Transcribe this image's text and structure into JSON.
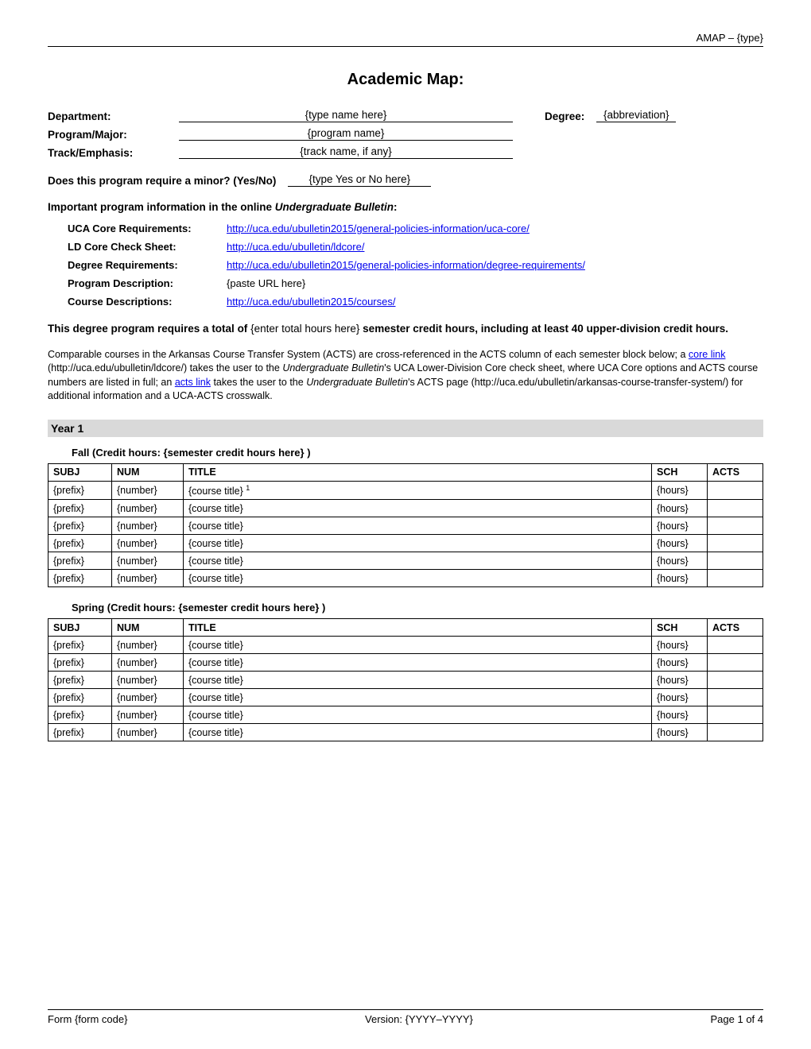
{
  "header": {
    "right": "AMAP – {type}"
  },
  "title": "Academic Map:",
  "info": {
    "department_label": "Department:",
    "department_value": "{type name here}",
    "degree_label": "Degree:",
    "degree_value": "{abbreviation}",
    "program_label": "Program/Major:",
    "program_value": "{program name}",
    "track_label": "Track/Emphasis:",
    "track_value": "{track name, if any}",
    "minor_label": "Does this program require a minor? (Yes/No)",
    "minor_value": "{type Yes or No here}"
  },
  "bulletin_heading_1": "Important program information in the online ",
  "bulletin_heading_2": "Undergraduate Bulletin",
  "bulletin_heading_3": ":",
  "links": {
    "uca_core_label": "UCA Core Requirements:",
    "uca_core_url": "http://uca.edu/ubulletin2015/general-policies-information/uca-core/",
    "ld_core_label": "LD Core Check Sheet:",
    "ld_core_url": "http://uca.edu/ubulletin/ldcore/",
    "degree_req_label": "Degree Requirements:",
    "degree_req_url": "http://uca.edu/ubulletin2015/general-policies-information/degree-requirements/",
    "program_desc_label": "Program Description:",
    "program_desc_value": "{paste URL here}",
    "course_desc_label": "Course Descriptions:",
    "course_desc_url": "http://uca.edu/ubulletin2015/courses/"
  },
  "degree_req_text": {
    "part1": "This degree program requires a total of ",
    "placeholder": "{enter total hours here}",
    "part2": "   semester credit hours, including at least 40 upper-division credit hours."
  },
  "paragraph": {
    "p1": "Comparable courses in the Arkansas Course Transfer System (ACTS) are cross-referenced in the ACTS column of each semester block below; a ",
    "core_link": "core link",
    "p2": " (http://uca.edu/ubulletin/ldcore/) takes the user to the ",
    "ub1": "Undergraduate Bulletin",
    "p3": "'s UCA Lower-Division Core check sheet, where UCA Core options and ACTS course numbers are listed in full; an ",
    "acts_link": "acts link",
    "p4": " takes the user to the ",
    "ub2": "Undergraduate Bulletin",
    "p5": "'s ACTS page (http://uca.edu/ubulletin/arkansas-course-transfer-system/) for additional information and a UCA-ACTS crosswalk."
  },
  "year": "Year 1",
  "fall_heading": "Fall (Credit hours: {semester credit hours here} )",
  "spring_heading": "Spring (Credit hours: {semester credit hours here} )",
  "table_headers": {
    "subj": "SUBJ",
    "num": "NUM",
    "title": "TITLE",
    "sch": "SCH",
    "acts": "ACTS"
  },
  "fall_rows": [
    {
      "subj": "{prefix}",
      "num": "{number}",
      "title": "{course title} ",
      "sup": "1",
      "sch": "{hours}",
      "acts": ""
    },
    {
      "subj": "{prefix}",
      "num": "{number}",
      "title": "{course title}",
      "sup": "",
      "sch": "{hours}",
      "acts": ""
    },
    {
      "subj": "{prefix}",
      "num": "{number}",
      "title": "{course title}",
      "sup": "",
      "sch": "{hours}",
      "acts": ""
    },
    {
      "subj": "{prefix}",
      "num": "{number}",
      "title": "{course title}",
      "sup": "",
      "sch": "{hours}",
      "acts": ""
    },
    {
      "subj": "{prefix}",
      "num": "{number}",
      "title": "{course title}",
      "sup": "",
      "sch": "{hours}",
      "acts": ""
    },
    {
      "subj": "{prefix}",
      "num": "{number}",
      "title": "{course title}",
      "sup": "",
      "sch": "{hours}",
      "acts": ""
    }
  ],
  "spring_rows": [
    {
      "subj": "{prefix}",
      "num": "{number}",
      "title": "{course title}",
      "sup": "",
      "sch": "{hours}",
      "acts": ""
    },
    {
      "subj": "{prefix}",
      "num": "{number}",
      "title": "{course title}",
      "sup": "",
      "sch": "{hours}",
      "acts": ""
    },
    {
      "subj": "{prefix}",
      "num": "{number}",
      "title": "{course title}",
      "sup": "",
      "sch": "{hours}",
      "acts": ""
    },
    {
      "subj": "{prefix}",
      "num": "{number}",
      "title": "{course title}",
      "sup": "",
      "sch": "{hours}",
      "acts": ""
    },
    {
      "subj": "{prefix}",
      "num": "{number}",
      "title": "{course title}",
      "sup": "",
      "sch": "{hours}",
      "acts": ""
    },
    {
      "subj": "{prefix}",
      "num": "{number}",
      "title": "{course title}",
      "sup": "",
      "sch": "{hours}",
      "acts": ""
    }
  ],
  "footer": {
    "left": "Form {form code}",
    "center": "Version: {YYYY–YYYY}",
    "right": "Page 1 of 4"
  }
}
